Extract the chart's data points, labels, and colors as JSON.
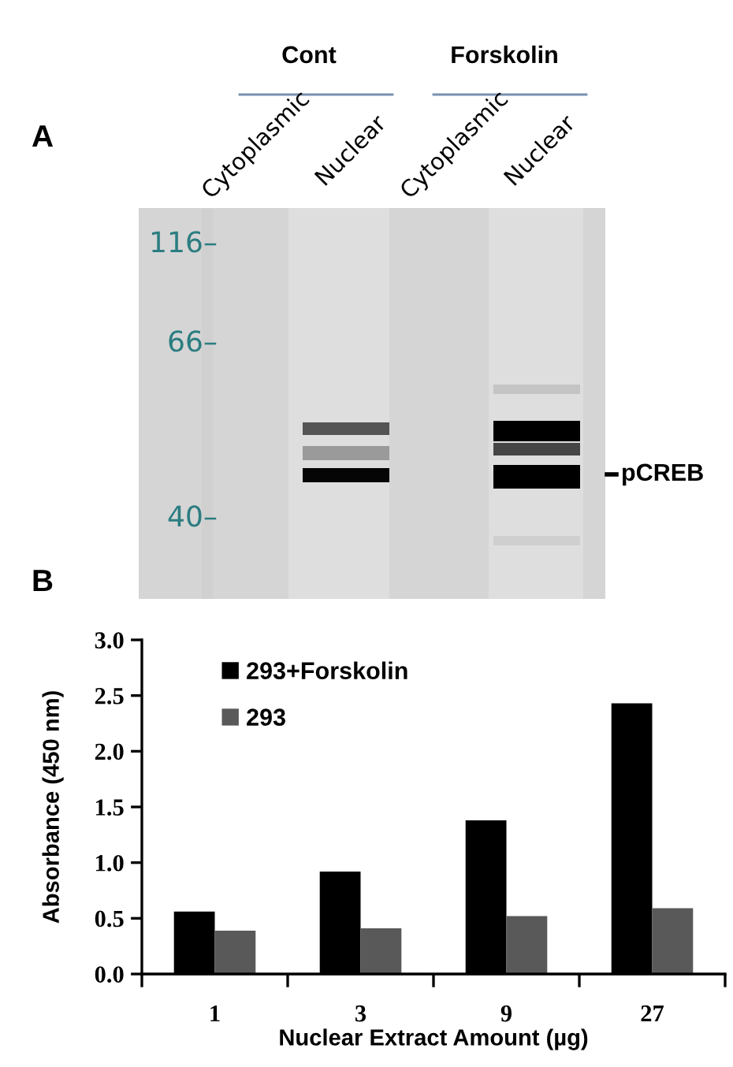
{
  "chart_data": [
    {
      "type": "other",
      "title": "A",
      "annotations": [
        "Cont",
        "Forskolin",
        "Cytoplasmic",
        "Nuclear",
        "Cytoplasmic",
        "Nuclear",
        "116–",
        "66–",
        "40–",
        "pCREB"
      ]
    },
    {
      "type": "bar",
      "title": "B",
      "categories": [
        "1",
        "3",
        "9",
        "27"
      ],
      "series": [
        {
          "name": "293+Forskolin",
          "color": "#000000",
          "values": [
            0.56,
            0.92,
            1.38,
            2.43
          ]
        },
        {
          "name": "293",
          "color": "#595959",
          "values": [
            0.39,
            0.41,
            0.52,
            0.59
          ]
        }
      ],
      "xlabel": "Nuclear Extract Amount (µg)",
      "ylabel": "Absorbance (450 nm)",
      "ylim": [
        0,
        3
      ],
      "yticks": [
        {
          "value": 0,
          "label": "0.0"
        },
        0.5,
        {
          "value": 1,
          "label": "1.0"
        },
        1.5,
        {
          "value": 2,
          "label": "2.0"
        },
        2.5,
        {
          "value": 3,
          "label": "3.0"
        }
      ],
      "legend": "top left",
      "grid": false
    }
  ]
}
